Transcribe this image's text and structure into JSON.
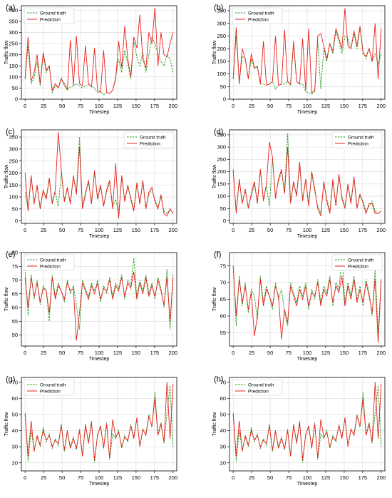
{
  "figure": {
    "panel_labels": [
      "(a)",
      "(b)",
      "(c)",
      "(d)",
      "(e)",
      "(f)",
      "(g)",
      "(h)"
    ],
    "colors": {
      "ground_truth": "#1a9a1a",
      "prediction": "#e8211d",
      "grid": "#d9d9d9",
      "axis": "#000000"
    }
  },
  "chart_data": [
    {
      "panel": "(a)",
      "type": "line",
      "xlabel": "Timestep",
      "ylabel": "Traffic flow",
      "xlim": [
        -5,
        205
      ],
      "ylim": [
        0,
        420
      ],
      "xticks": [
        0,
        25,
        50,
        75,
        100,
        125,
        150,
        175,
        200
      ],
      "yticks": [
        0,
        50,
        100,
        150,
        200,
        250,
        300,
        350,
        400
      ],
      "grid": true,
      "legend": "top-left",
      "series": [
        {
          "name": "Ground truth",
          "style": "dashed",
          "values": [
            90,
            240,
            70,
            95,
            170,
            60,
            200,
            120,
            150,
            30,
            60,
            55,
            95,
            60,
            40,
            55,
            60,
            70,
            60,
            50,
            60,
            65,
            60,
            50,
            30,
            35,
            20,
            30,
            25,
            40,
            100,
            180,
            120,
            220,
            160,
            90,
            260,
            190,
            150,
            210,
            120,
            200,
            280,
            250,
            200,
            170,
            150,
            200,
            180,
            120
          ]
        },
        {
          "name": "Prediction",
          "style": "solid",
          "values": [
            90,
            280,
            80,
            120,
            200,
            70,
            210,
            130,
            150,
            40,
            70,
            50,
            90,
            70,
            45,
            265,
            60,
            285,
            70,
            60,
            240,
            70,
            55,
            230,
            40,
            30,
            220,
            30,
            25,
            40,
            90,
            260,
            140,
            330,
            180,
            100,
            280,
            230,
            380,
            180,
            140,
            300,
            250,
            410,
            150,
            300,
            200,
            190,
            250,
            300
          ]
        }
      ]
    },
    {
      "panel": "(b)",
      "type": "line",
      "xlabel": "Timestep",
      "ylabel": "Traffic flow",
      "xlim": [
        -5,
        205
      ],
      "ylim": [
        0,
        370
      ],
      "xticks": [
        0,
        25,
        50,
        75,
        100,
        125,
        150,
        175,
        200
      ],
      "yticks": [
        0,
        50,
        100,
        150,
        200,
        250,
        300,
        350
      ],
      "grid": true,
      "legend": "top-left",
      "series": [
        {
          "name": "Ground truth",
          "style": "dashed",
          "values": [
            80,
            250,
            70,
            170,
            160,
            80,
            160,
            120,
            130,
            60,
            60,
            55,
            60,
            70,
            40,
            55,
            60,
            60,
            70,
            55,
            220,
            70,
            60,
            60,
            30,
            25,
            20,
            30,
            230,
            40,
            200,
            150,
            220,
            180,
            270,
            230,
            180,
            250,
            240,
            200,
            260,
            200,
            280,
            190,
            160,
            200,
            150,
            180,
            140,
            180
          ]
        },
        {
          "name": "Prediction",
          "style": "solid",
          "values": [
            80,
            285,
            60,
            200,
            160,
            80,
            180,
            125,
            130,
            60,
            230,
            55,
            60,
            70,
            250,
            55,
            60,
            275,
            70,
            60,
            230,
            70,
            60,
            240,
            35,
            280,
            25,
            35,
            250,
            260,
            210,
            160,
            220,
            190,
            280,
            240,
            200,
            360,
            210,
            200,
            270,
            210,
            290,
            180,
            170,
            200,
            150,
            300,
            80,
            280
          ]
        }
      ]
    },
    {
      "panel": "(c)",
      "type": "line",
      "xlabel": "Timestep",
      "ylabel": "Traffic flow",
      "xlim": [
        -5,
        205
      ],
      "ylim": [
        -10,
        380
      ],
      "xticks": [
        0,
        25,
        50,
        75,
        100,
        125,
        150,
        175,
        200
      ],
      "yticks": [
        0,
        50,
        100,
        150,
        200,
        250,
        300,
        350
      ],
      "grid": true,
      "legend": "top-right",
      "series": [
        {
          "name": "Ground truth",
          "style": "dashed",
          "values": [
            120,
            50,
            180,
            80,
            140,
            60,
            120,
            100,
            170,
            80,
            120,
            60,
            200,
            90,
            130,
            80,
            180,
            120,
            350,
            60,
            120,
            160,
            80,
            200,
            100,
            140,
            70,
            120,
            160,
            60,
            90,
            30,
            180,
            90,
            140,
            100,
            50,
            150,
            80,
            160,
            60,
            110,
            130,
            90,
            60,
            100,
            40,
            30,
            50,
            30
          ]
        },
        {
          "name": "Prediction",
          "style": "solid",
          "values": [
            200,
            40,
            190,
            70,
            150,
            50,
            130,
            90,
            180,
            70,
            130,
            370,
            210,
            80,
            140,
            70,
            190,
            110,
            310,
            50,
            110,
            170,
            70,
            210,
            90,
            150,
            60,
            130,
            170,
            50,
            240,
            10,
            190,
            80,
            150,
            90,
            40,
            160,
            70,
            170,
            50,
            120,
            140,
            80,
            50,
            110,
            30,
            20,
            50,
            30
          ]
        }
      ]
    },
    {
      "panel": "(d)",
      "type": "line",
      "xlabel": "Timestep",
      "ylabel": "Traffic flow",
      "xlim": [
        -5,
        205
      ],
      "ylim": [
        -10,
        370
      ],
      "xticks": [
        0,
        25,
        50,
        75,
        100,
        125,
        150,
        175,
        200
      ],
      "yticks": [
        0,
        50,
        100,
        150,
        200,
        250,
        300,
        350
      ],
      "grid": true,
      "legend": "top-right",
      "series": [
        {
          "name": "Ground truth",
          "style": "dashed",
          "values": [
            200,
            40,
            160,
            80,
            120,
            60,
            100,
            150,
            80,
            200,
            90,
            140,
            60,
            250,
            100,
            160,
            200,
            120,
            355,
            80,
            150,
            110,
            220,
            90,
            160,
            70,
            190,
            120,
            60,
            30,
            150,
            90,
            40,
            160,
            70,
            180,
            100,
            60,
            140,
            80,
            170,
            60,
            100,
            80,
            40,
            60,
            80,
            40,
            30,
            40
          ]
        },
        {
          "name": "Prediction",
          "style": "solid",
          "values": [
            210,
            30,
            170,
            70,
            130,
            50,
            110,
            160,
            70,
            210,
            80,
            150,
            320,
            260,
            90,
            170,
            210,
            110,
            300,
            70,
            160,
            100,
            240,
            80,
            170,
            60,
            200,
            130,
            50,
            20,
            160,
            80,
            30,
            170,
            60,
            190,
            90,
            50,
            150,
            70,
            180,
            50,
            110,
            70,
            30,
            70,
            70,
            30,
            30,
            40
          ]
        }
      ]
    },
    {
      "panel": "(e)",
      "type": "line",
      "xlabel": "Timestep",
      "ylabel": "Traffic flow",
      "xlim": [
        -5,
        205
      ],
      "ylim": [
        46,
        80
      ],
      "xticks": [
        0,
        25,
        50,
        75,
        100,
        125,
        150,
        175,
        200
      ],
      "yticks": [
        50,
        55,
        60,
        65,
        70,
        75,
        80
      ],
      "grid": true,
      "legend": "top-left",
      "series": [
        {
          "name": "Ground truth",
          "style": "dashed",
          "values": [
            74,
            57,
            72,
            63,
            70,
            61,
            68,
            66,
            55,
            72,
            64,
            69,
            66,
            62,
            70,
            65,
            68,
            61,
            52,
            70,
            67,
            64,
            69,
            66,
            70,
            62,
            68,
            65,
            71,
            64,
            69,
            67,
            72,
            63,
            70,
            68,
            78,
            64,
            70,
            66,
            72,
            65,
            69,
            63,
            71,
            67,
            60,
            74,
            52,
            72
          ]
        },
        {
          "name": "Prediction",
          "style": "solid",
          "values": [
            71,
            60,
            71,
            64,
            69,
            62,
            67,
            66,
            58,
            71,
            63,
            68,
            66,
            63,
            69,
            66,
            67,
            48,
            58,
            69,
            66,
            63,
            68,
            65,
            69,
            63,
            67,
            66,
            70,
            63,
            68,
            66,
            71,
            64,
            69,
            67,
            73,
            63,
            69,
            65,
            71,
            64,
            68,
            64,
            70,
            66,
            61,
            71,
            55,
            71
          ]
        }
      ]
    },
    {
      "panel": "(f)",
      "type": "line",
      "xlabel": "Timestep",
      "ylabel": "Traffic flow",
      "xlim": [
        -5,
        205
      ],
      "ylim": [
        51,
        79
      ],
      "xticks": [
        0,
        25,
        50,
        75,
        100,
        125,
        150,
        175,
        200
      ],
      "yticks": [
        55,
        60,
        65,
        70,
        75
      ],
      "grid": true,
      "legend": "top-right",
      "series": [
        {
          "name": "Ground truth",
          "style": "dashed",
          "values": [
            75,
            57,
            72,
            63,
            70,
            61,
            68,
            66,
            59,
            72,
            64,
            69,
            66,
            62,
            70,
            65,
            68,
            61,
            57,
            70,
            67,
            64,
            69,
            66,
            70,
            62,
            68,
            65,
            71,
            64,
            69,
            67,
            72,
            63,
            70,
            68,
            78,
            64,
            70,
            66,
            72,
            65,
            69,
            63,
            71,
            67,
            60,
            74,
            55,
            71
          ]
        },
        {
          "name": "Prediction",
          "style": "solid",
          "values": [
            75,
            60,
            71,
            64,
            69,
            62,
            67,
            54,
            60,
            71,
            63,
            68,
            66,
            63,
            69,
            66,
            53,
            62,
            58,
            69,
            66,
            63,
            68,
            65,
            69,
            63,
            67,
            66,
            70,
            63,
            68,
            66,
            71,
            64,
            69,
            67,
            72,
            63,
            69,
            65,
            71,
            64,
            68,
            64,
            70,
            66,
            61,
            71,
            52,
            71
          ]
        }
      ]
    },
    {
      "panel": "(g)",
      "type": "line",
      "xlabel": "Timestep",
      "ylabel": "Traffic flow",
      "xlim": [
        -5,
        205
      ],
      "ylim": [
        15,
        73
      ],
      "xticks": [
        0,
        25,
        50,
        75,
        100,
        125,
        150,
        175,
        200
      ],
      "yticks": [
        20,
        30,
        40,
        50,
        60,
        70
      ],
      "grid": true,
      "legend": "top-left",
      "series": [
        {
          "name": "Ground truth",
          "style": "dashed",
          "values": [
            50,
            21,
            40,
            28,
            36,
            30,
            42,
            33,
            38,
            29,
            35,
            31,
            44,
            27,
            39,
            30,
            36,
            28,
            41,
            25,
            43,
            33,
            46,
            20,
            38,
            42,
            30,
            45,
            22,
            38,
            35,
            40,
            29,
            37,
            33,
            44,
            36,
            47,
            31,
            40,
            38,
            50,
            42,
            64,
            38,
            45,
            32,
            51,
            68,
            30
          ]
        },
        {
          "name": "Prediction",
          "style": "solid",
          "values": [
            51,
            24,
            46,
            27,
            37,
            31,
            40,
            34,
            37,
            30,
            34,
            32,
            43,
            28,
            40,
            29,
            35,
            29,
            40,
            24,
            44,
            32,
            45,
            22,
            37,
            43,
            29,
            44,
            23,
            47,
            36,
            39,
            30,
            36,
            34,
            43,
            35,
            48,
            30,
            41,
            37,
            49,
            43,
            60,
            37,
            44,
            33,
            70,
            35,
            69
          ]
        }
      ]
    },
    {
      "panel": "(h)",
      "type": "line",
      "xlabel": "Timestep",
      "ylabel": "Traffic flow",
      "xlim": [
        -5,
        205
      ],
      "ylim": [
        15,
        73
      ],
      "xticks": [
        0,
        25,
        50,
        75,
        100,
        125,
        150,
        175,
        200
      ],
      "yticks": [
        20,
        30,
        40,
        50,
        60,
        70
      ],
      "grid": true,
      "legend": "top-left",
      "series": [
        {
          "name": "Ground truth",
          "style": "dashed",
          "values": [
            50,
            21,
            40,
            28,
            36,
            30,
            42,
            33,
            38,
            29,
            35,
            31,
            44,
            27,
            39,
            30,
            36,
            28,
            41,
            25,
            43,
            33,
            46,
            20,
            38,
            42,
            30,
            45,
            22,
            38,
            35,
            40,
            29,
            37,
            33,
            44,
            36,
            47,
            31,
            40,
            38,
            50,
            42,
            64,
            38,
            45,
            32,
            51,
            68,
            30
          ]
        },
        {
          "name": "Prediction",
          "style": "solid",
          "values": [
            51,
            24,
            46,
            27,
            37,
            31,
            40,
            34,
            37,
            30,
            34,
            32,
            43,
            28,
            40,
            29,
            35,
            29,
            40,
            24,
            44,
            32,
            45,
            22,
            37,
            43,
            29,
            44,
            23,
            47,
            36,
            39,
            30,
            36,
            34,
            43,
            35,
            48,
            30,
            41,
            37,
            49,
            43,
            60,
            37,
            44,
            33,
            70,
            35,
            69
          ]
        }
      ]
    }
  ]
}
